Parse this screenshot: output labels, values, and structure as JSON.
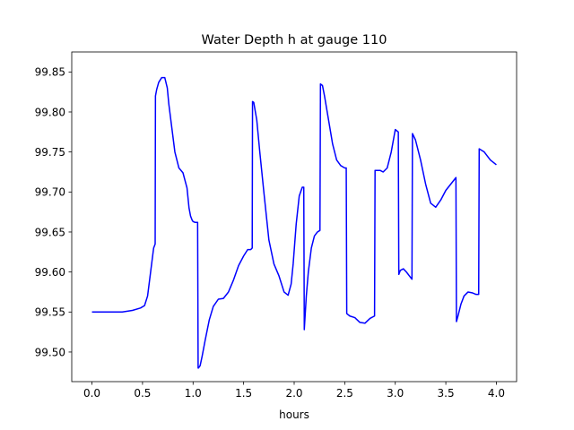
{
  "chart_data": {
    "type": "line",
    "title": "Water Depth h at gauge 110",
    "xlabel": "hours",
    "ylabel": "",
    "xlim": [
      -0.2,
      4.2
    ],
    "ylim": [
      99.463,
      99.875
    ],
    "xticks": [
      0.0,
      0.5,
      1.0,
      1.5,
      2.0,
      2.5,
      3.0,
      3.5,
      4.0
    ],
    "xtick_labels": [
      "0.0",
      "0.5",
      "1.0",
      "1.5",
      "2.0",
      "2.5",
      "3.0",
      "3.5",
      "4.0"
    ],
    "yticks": [
      99.5,
      99.55,
      99.6,
      99.65,
      99.7,
      99.75,
      99.8,
      99.85
    ],
    "ytick_labels": [
      "99.50",
      "99.55",
      "99.60",
      "99.65",
      "99.70",
      "99.75",
      "99.80",
      "99.85"
    ],
    "grid": false,
    "series": [
      {
        "color": "#0000ff",
        "x": [
          0.0,
          0.25,
          0.3,
          0.4,
          0.48,
          0.52,
          0.55,
          0.58,
          0.61,
          0.625,
          0.628,
          0.64,
          0.66,
          0.69,
          0.72,
          0.745,
          0.76,
          0.79,
          0.82,
          0.86,
          0.9,
          0.94,
          0.96,
          0.975,
          0.99,
          1.0,
          1.02,
          1.03,
          1.045,
          1.05,
          1.053,
          1.07,
          1.09,
          1.12,
          1.16,
          1.2,
          1.25,
          1.3,
          1.35,
          1.4,
          1.45,
          1.5,
          1.54,
          1.57,
          1.585,
          1.588,
          1.6,
          1.63,
          1.66,
          1.7,
          1.75,
          1.8,
          1.85,
          1.9,
          1.94,
          1.97,
          1.99,
          2.02,
          2.05,
          2.08,
          2.095,
          2.1,
          2.12,
          2.14,
          2.17,
          2.2,
          2.23,
          2.255,
          2.26,
          2.28,
          2.3,
          2.34,
          2.38,
          2.42,
          2.46,
          2.5,
          2.515,
          2.52,
          2.55,
          2.6,
          2.65,
          2.7,
          2.75,
          2.795,
          2.8,
          2.85,
          2.88,
          2.92,
          2.96,
          3.0,
          3.03,
          3.035,
          3.05,
          3.08,
          3.11,
          3.14,
          3.165,
          3.17,
          3.2,
          3.25,
          3.3,
          3.35,
          3.4,
          3.45,
          3.5,
          3.55,
          3.6,
          3.605,
          3.62,
          3.65,
          3.68,
          3.72,
          3.76,
          3.8,
          3.825,
          3.83,
          3.88,
          3.94,
          4.0
        ],
        "y": [
          99.55,
          99.55,
          99.55,
          99.552,
          99.555,
          99.558,
          99.57,
          99.6,
          99.63,
          99.635,
          99.82,
          99.828,
          99.837,
          99.843,
          99.843,
          99.83,
          99.81,
          99.78,
          99.75,
          99.73,
          99.724,
          99.705,
          99.68,
          99.67,
          99.665,
          99.663,
          99.662,
          99.662,
          99.662,
          99.48,
          99.48,
          99.483,
          99.495,
          99.515,
          99.54,
          99.557,
          99.566,
          99.567,
          99.575,
          99.59,
          99.608,
          99.62,
          99.628,
          99.628,
          99.63,
          99.813,
          99.812,
          99.79,
          99.75,
          99.7,
          99.64,
          99.61,
          99.595,
          99.575,
          99.571,
          99.585,
          99.61,
          99.66,
          99.695,
          99.706,
          99.706,
          99.528,
          99.57,
          99.6,
          99.63,
          99.645,
          99.65,
          99.652,
          99.835,
          99.833,
          99.82,
          99.79,
          99.76,
          99.74,
          99.733,
          99.73,
          99.73,
          99.548,
          99.545,
          99.543,
          99.537,
          99.536,
          99.542,
          99.545,
          99.727,
          99.727,
          99.725,
          99.73,
          99.75,
          99.778,
          99.775,
          99.597,
          99.602,
          99.604,
          99.6,
          99.595,
          99.591,
          99.773,
          99.765,
          99.74,
          99.71,
          99.686,
          99.681,
          99.69,
          99.702,
          99.71,
          99.718,
          99.538,
          99.545,
          99.56,
          99.57,
          99.575,
          99.574,
          99.572,
          99.572,
          99.754,
          99.75,
          99.74,
          99.734
        ]
      }
    ]
  }
}
